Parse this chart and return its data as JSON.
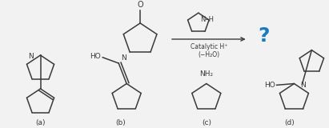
{
  "bg_color": "#f2f2f2",
  "line_color": "#3a3a3a",
  "line_width": 1.1,
  "question_color": "#1a7abf",
  "catalytic_text": "Catalytic H⁺",
  "water_text": "(−H₂O)",
  "nh_text": "N–H",
  "labels": [
    "(a)",
    "(b)",
    "(c)",
    "(d)"
  ],
  "figsize": [
    4.11,
    1.6
  ],
  "dpi": 100
}
